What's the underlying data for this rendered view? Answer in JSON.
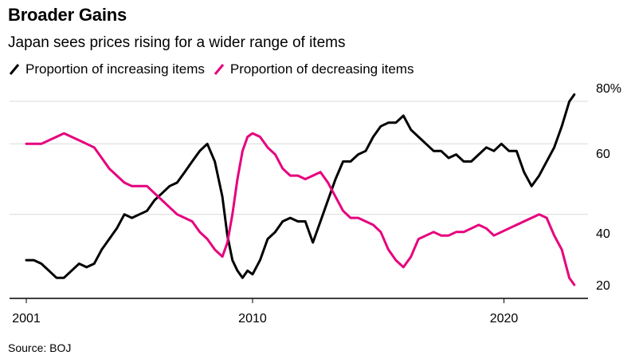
{
  "header": {
    "title": "Broader Gains",
    "subtitle": "Japan sees prices rising for a wider range of items"
  },
  "source": "Source: BOJ",
  "colors": {
    "increasing": "#000000",
    "decreasing": "#e6007e"
  },
  "chart_data": {
    "type": "line",
    "title": "Broader Gains",
    "subtitle": "Japan sees prices rising for a wider range of items",
    "xlabel": "",
    "ylabel": "",
    "unit": "%",
    "xlim": [
      2001.0,
      2022.9
    ],
    "ylim": [
      17,
      80
    ],
    "x_ticks": [
      {
        "value": 2001,
        "label": "2001"
      },
      {
        "value": 2010,
        "label": "2010"
      },
      {
        "value": 2020,
        "label": "2020"
      }
    ],
    "y_ticks": [
      {
        "value": 20,
        "label": "20"
      },
      {
        "value": 40,
        "label": "40"
      },
      {
        "value": 60,
        "label": "60"
      },
      {
        "value": 80,
        "label": "80%"
      }
    ],
    "grid": true,
    "legend_position": "top-left",
    "series": [
      {
        "name": "Proportion of increasing items",
        "color": "#000000",
        "x": [
          2001.0,
          2001.3,
          2001.6,
          2001.9,
          2002.2,
          2002.5,
          2002.8,
          2003.1,
          2003.4,
          2003.7,
          2004.0,
          2004.3,
          2004.6,
          2004.9,
          2005.2,
          2005.5,
          2005.8,
          2006.1,
          2006.4,
          2006.7,
          2007.0,
          2007.3,
          2007.6,
          2007.9,
          2008.2,
          2008.5,
          2008.8,
          2009.0,
          2009.2,
          2009.4,
          2009.6,
          2009.8,
          2010.0,
          2010.3,
          2010.6,
          2010.9,
          2011.2,
          2011.5,
          2011.8,
          2012.1,
          2012.4,
          2012.7,
          2013.0,
          2013.3,
          2013.6,
          2013.9,
          2014.2,
          2014.5,
          2014.8,
          2015.1,
          2015.4,
          2015.7,
          2016.0,
          2016.3,
          2016.6,
          2016.9,
          2017.2,
          2017.5,
          2017.8,
          2018.1,
          2018.4,
          2018.7,
          2019.0,
          2019.3,
          2019.6,
          2019.9,
          2020.2,
          2020.5,
          2020.8,
          2021.1,
          2021.4,
          2021.7,
          2022.0,
          2022.3,
          2022.6,
          2022.8
        ],
        "values": [
          27,
          27,
          26,
          24,
          22,
          22,
          24,
          26,
          25,
          26,
          30,
          33,
          36,
          40,
          39,
          40,
          41,
          44,
          46,
          48,
          49,
          52,
          55,
          58,
          60,
          55,
          45,
          34,
          27,
          24,
          22,
          24,
          23,
          27,
          33,
          35,
          38,
          39,
          38,
          38,
          32,
          38,
          44,
          50,
          55,
          55,
          57,
          58,
          62,
          65,
          66,
          66,
          68,
          64,
          62,
          60,
          58,
          58,
          56,
          57,
          55,
          55,
          57,
          59,
          58,
          60,
          58,
          58,
          52,
          48,
          51,
          55,
          59,
          65,
          72,
          74
        ]
      },
      {
        "name": "Proportion of decreasing items",
        "color": "#e6007e",
        "x": [
          2001.0,
          2001.3,
          2001.6,
          2001.9,
          2002.2,
          2002.5,
          2002.8,
          2003.1,
          2003.4,
          2003.7,
          2004.0,
          2004.3,
          2004.6,
          2004.9,
          2005.2,
          2005.5,
          2005.8,
          2006.1,
          2006.4,
          2006.7,
          2007.0,
          2007.3,
          2007.6,
          2007.9,
          2008.2,
          2008.5,
          2008.8,
          2009.0,
          2009.2,
          2009.4,
          2009.6,
          2009.8,
          2010.0,
          2010.3,
          2010.6,
          2010.9,
          2011.2,
          2011.5,
          2011.8,
          2012.1,
          2012.4,
          2012.7,
          2013.0,
          2013.3,
          2013.6,
          2013.9,
          2014.2,
          2014.5,
          2014.8,
          2015.1,
          2015.4,
          2015.7,
          2016.0,
          2016.3,
          2016.6,
          2016.9,
          2017.2,
          2017.5,
          2017.8,
          2018.1,
          2018.4,
          2018.7,
          2019.0,
          2019.3,
          2019.6,
          2019.9,
          2020.2,
          2020.5,
          2020.8,
          2021.1,
          2021.4,
          2021.7,
          2022.0,
          2022.3,
          2022.6,
          2022.8
        ],
        "values": [
          60,
          60,
          60,
          61,
          62,
          63,
          62,
          61,
          60,
          59,
          56,
          53,
          51,
          49,
          48,
          48,
          48,
          46,
          44,
          42,
          40,
          39,
          38,
          35,
          33,
          30,
          28,
          32,
          40,
          50,
          58,
          62,
          63,
          62,
          59,
          57,
          53,
          51,
          51,
          50,
          51,
          52,
          49,
          45,
          41,
          39,
          39,
          38,
          37,
          35,
          30,
          27,
          25,
          28,
          33,
          34,
          35,
          34,
          34,
          35,
          35,
          36,
          37,
          36,
          34,
          35,
          36,
          37,
          38,
          39,
          40,
          39,
          34,
          30,
          22,
          20
        ]
      }
    ]
  }
}
